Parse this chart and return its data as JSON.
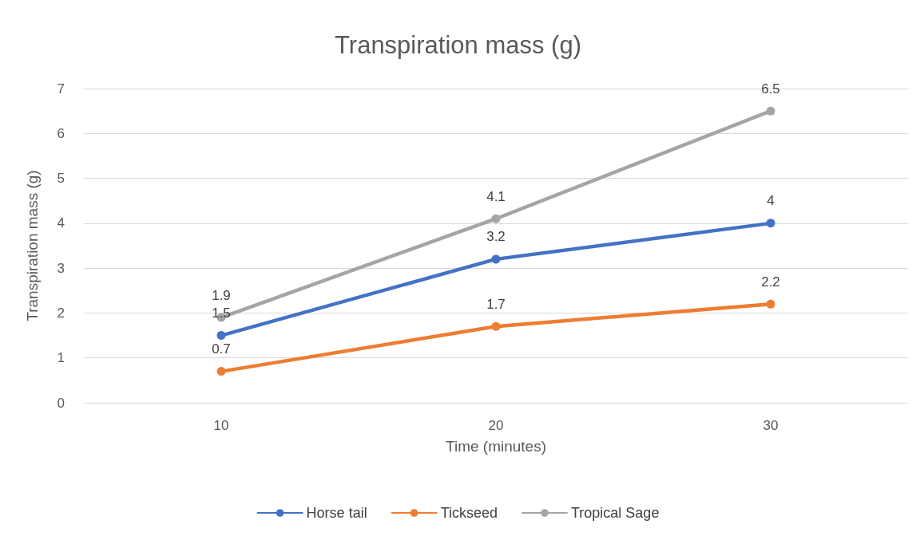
{
  "chart_data": {
    "type": "line",
    "title": "Transpiration mass (g)",
    "xlabel": "Time (minutes)",
    "ylabel": "Transpiration mass (g)",
    "categories": [
      "10",
      "20",
      "30"
    ],
    "series": [
      {
        "name": "Horse tail",
        "color": "#4472c4",
        "values": [
          1.5,
          3.2,
          4
        ]
      },
      {
        "name": "Tickseed",
        "color": "#ed7d31",
        "values": [
          0.7,
          1.7,
          2.2
        ]
      },
      {
        "name": "Tropical Sage",
        "color": "#a5a5a5",
        "values": [
          1.9,
          4.1,
          6.5
        ]
      }
    ],
    "ylim": [
      0,
      7
    ],
    "yticks": [
      0,
      1,
      2,
      3,
      4,
      5,
      6,
      7
    ],
    "grid": "y",
    "legend": "bottom",
    "marker": "circle",
    "line_style": "solid",
    "data_labels": true
  }
}
